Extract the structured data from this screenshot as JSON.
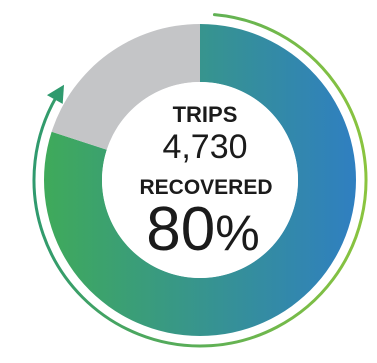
{
  "chart_data": {
    "type": "pie",
    "donut": true,
    "categories": [
      "Recovered",
      "Not recovered"
    ],
    "values": [
      80,
      20
    ],
    "unit": "%",
    "start_angle_deg": 0,
    "direction": "clockwise",
    "colors": {
      "recovered_gradient": [
        "#3faa5a",
        "#2f7fc1"
      ],
      "remainder": "#c4c5c7",
      "arrow_gradient": [
        "#2f9a6e",
        "#8ac43f"
      ],
      "center_fill": "#ffffff",
      "text": "#1b1b1b"
    },
    "center_text": {
      "metric_label": "TRIPS",
      "metric_value": "4,730",
      "percent_label": "RECOVERED",
      "percent_number": "80",
      "percent_sign": "%"
    }
  }
}
